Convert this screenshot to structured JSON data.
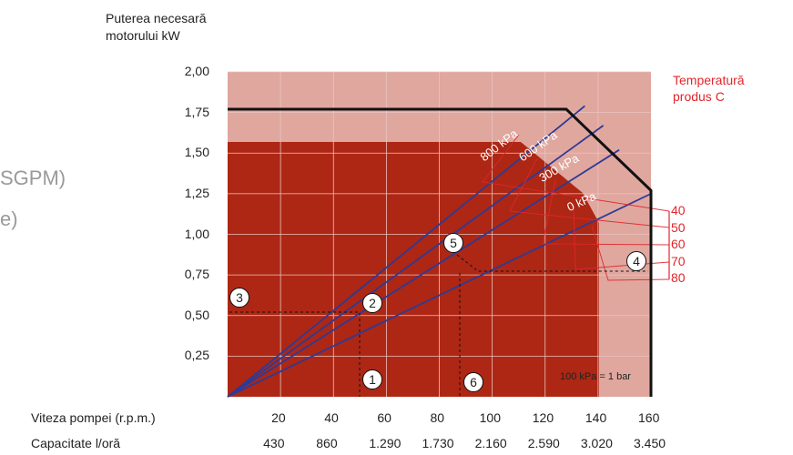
{
  "left_fragments": {
    "line1": "SGPM)",
    "line2": "e)"
  },
  "y_axis_title": [
    "Puterea necesară",
    "motorului kW"
  ],
  "temperature_title": [
    "Temperatură",
    "produs C"
  ],
  "row_labels": {
    "speed": "Viteza pompei (r.p.m.)",
    "capacity": "Capacitate l/oră"
  },
  "note": "100 kPa = 1 bar",
  "markers": [
    "1",
    "2",
    "3",
    "4",
    "5",
    "6"
  ],
  "colors": {
    "light_region": "#e0a79f",
    "dark_region": "#ad2714",
    "pressure_lines": "#2e3a95",
    "temperature_lines": "#e0262b",
    "envelope": "#111111"
  },
  "chart_data": {
    "type": "line",
    "x_title": "",
    "y_title": "Puterea necesară motorului kW",
    "xlim": [
      0,
      160
    ],
    "ylim": [
      0,
      2.0
    ],
    "y_ticks": [
      {
        "value": 0.25,
        "label": "0,25"
      },
      {
        "value": 0.5,
        "label": "0,50"
      },
      {
        "value": 0.75,
        "label": "0,75"
      },
      {
        "value": 1.0,
        "label": "1,00"
      },
      {
        "value": 1.25,
        "label": "1,25"
      },
      {
        "value": 1.5,
        "label": "1,50"
      },
      {
        "value": 1.75,
        "label": "1,75"
      },
      {
        "value": 2.0,
        "label": "2,00"
      }
    ],
    "x_ticks_speed": [
      {
        "value": 20,
        "label": "20"
      },
      {
        "value": 40,
        "label": "40"
      },
      {
        "value": 60,
        "label": "60"
      },
      {
        "value": 80,
        "label": "80"
      },
      {
        "value": 100,
        "label": "100"
      },
      {
        "value": 120,
        "label": "120"
      },
      {
        "value": 140,
        "label": "140"
      },
      {
        "value": 160,
        "label": "160"
      }
    ],
    "x_ticks_capacity": [
      {
        "value": 20,
        "label": "430"
      },
      {
        "value": 40,
        "label": "860"
      },
      {
        "value": 60,
        "label": "1.290"
      },
      {
        "value": 80,
        "label": "1.730"
      },
      {
        "value": 100,
        "label": "2.160"
      },
      {
        "value": 120,
        "label": "2.590"
      },
      {
        "value": 140,
        "label": "3.020"
      },
      {
        "value": 160,
        "label": "3.450"
      }
    ],
    "series": [
      {
        "name": "800 kPa",
        "points": [
          [
            0,
            0
          ],
          [
            135,
            1.79
          ]
        ]
      },
      {
        "name": "600 kPa",
        "points": [
          [
            0,
            0
          ],
          [
            142,
            1.67
          ]
        ]
      },
      {
        "name": "300 kPa",
        "points": [
          [
            0,
            0
          ],
          [
            148,
            1.52
          ]
        ]
      },
      {
        "name": "0 kPa",
        "points": [
          [
            0,
            0
          ],
          [
            160,
            1.25
          ]
        ]
      }
    ],
    "envelope": [
      [
        0,
        1.77
      ],
      [
        128,
        1.77
      ],
      [
        160,
        1.27
      ],
      [
        160,
        0
      ]
    ],
    "temperatures": [
      "40",
      "50",
      "60",
      "70",
      "80"
    ],
    "grid": true
  }
}
